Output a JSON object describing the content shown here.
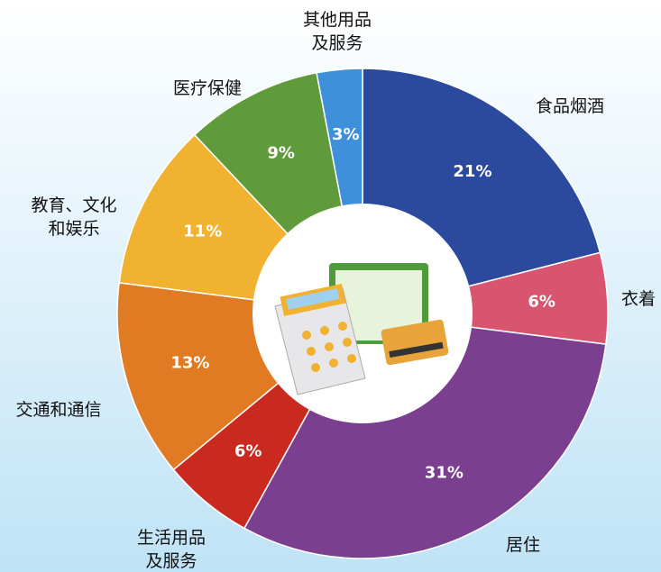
{
  "chart_data": {
    "type": "donut",
    "categories": [
      "食品烟酒",
      "衣着",
      "居住",
      "生活用品\n及服务",
      "交通和通信",
      "教育、文化\n和娱乐",
      "医疗保健",
      "其他用品\n及服务"
    ],
    "values": [
      21,
      6,
      31,
      6,
      13,
      11,
      9,
      3
    ],
    "value_labels": [
      "21%",
      "6%",
      "31%",
      "6%",
      "13%",
      "11%",
      "9%",
      "3%"
    ],
    "colors": [
      "#2b4a9e",
      "#d8546f",
      "#7b3f8f",
      "#c9291f",
      "#e07b24",
      "#f1b131",
      "#5f9b3b",
      "#3f90da"
    ]
  }
}
